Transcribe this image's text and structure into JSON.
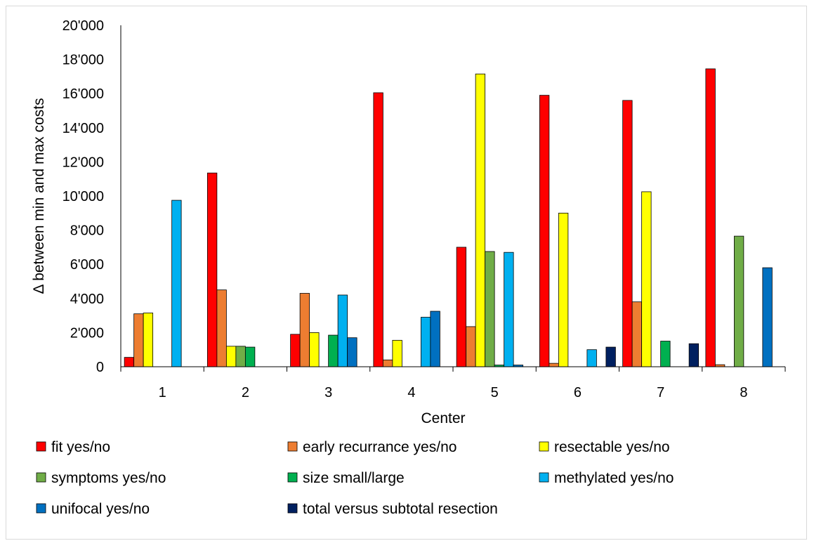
{
  "chart_data": {
    "type": "bar",
    "title": "",
    "xlabel": "Center",
    "ylabel": "Δ between min and max costs",
    "categories": [
      "1",
      "2",
      "3",
      "4",
      "5",
      "6",
      "7",
      "8"
    ],
    "ylim": [
      0,
      20000
    ],
    "yticks": [
      0,
      2000,
      4000,
      6000,
      8000,
      10000,
      12000,
      14000,
      16000,
      18000,
      20000
    ],
    "ytick_labels": [
      "0",
      "2'000",
      "4'000",
      "6'000",
      "8'000",
      "10'000",
      "12'000",
      "14'000",
      "16'000",
      "18'000",
      "20'000"
    ],
    "grid": false,
    "legend_position": "bottom",
    "series": [
      {
        "name": "fit yes/no",
        "color": "#ff0000",
        "values": [
          550,
          11350,
          1900,
          16050,
          7000,
          15900,
          15600,
          17450
        ]
      },
      {
        "name": "early recurrance yes/no",
        "color": "#ed7d31",
        "values": [
          3100,
          4500,
          4300,
          400,
          2350,
          200,
          3800,
          120
        ]
      },
      {
        "name": "resectable yes/no",
        "color": "#ffff00",
        "values": [
          3150,
          1200,
          2000,
          1550,
          17150,
          9000,
          10250,
          0
        ]
      },
      {
        "name": "symptoms yes/no",
        "color": "#70ad47",
        "values": [
          0,
          1200,
          0,
          0,
          6750,
          0,
          0,
          7650
        ]
      },
      {
        "name": "size small/large",
        "color": "#00b050",
        "values": [
          0,
          1150,
          1850,
          0,
          100,
          0,
          1500,
          0
        ]
      },
      {
        "name": "methylated yes/no",
        "color": "#00b0f0",
        "values": [
          9750,
          0,
          4200,
          2900,
          6700,
          1000,
          0,
          0
        ]
      },
      {
        "name": "unifocal yes/no",
        "color": "#0070c0",
        "values": [
          0,
          0,
          1700,
          3250,
          100,
          0,
          0,
          5800
        ]
      },
      {
        "name": "total versus subtotal resection",
        "color": "#002060",
        "values": [
          0,
          0,
          0,
          0,
          0,
          1150,
          1350,
          0
        ]
      }
    ]
  }
}
